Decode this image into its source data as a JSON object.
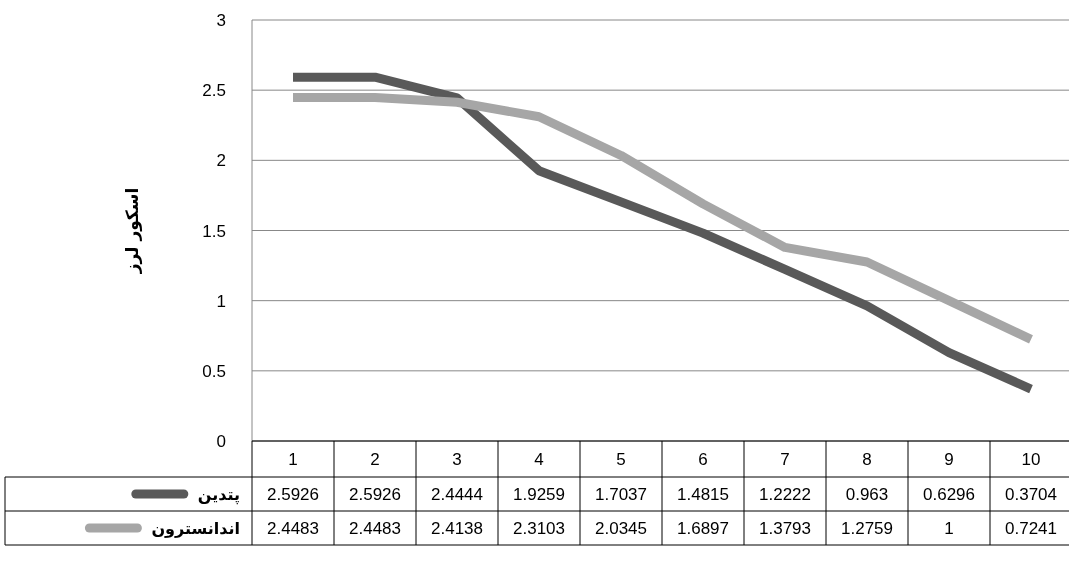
{
  "chart_data": {
    "type": "line",
    "ylabel": "اسکور لرز",
    "categories": [
      "1",
      "2",
      "3",
      "4",
      "5",
      "6",
      "7",
      "8",
      "9",
      "10"
    ],
    "series": [
      {
        "name": "پتدین",
        "color": "#595959",
        "values": [
          2.5926,
          2.5926,
          2.4444,
          1.9259,
          1.7037,
          1.4815,
          1.2222,
          0.963,
          0.6296,
          0.3704
        ]
      },
      {
        "name": "اندانسترون",
        "color": "#a6a6a6",
        "values": [
          2.4483,
          2.4483,
          2.4138,
          2.3103,
          2.0345,
          1.6897,
          1.3793,
          1.2759,
          1,
          0.7241
        ]
      }
    ],
    "ylim": [
      0,
      3
    ],
    "yticks": [
      0,
      0.5,
      1,
      1.5,
      2,
      2.5,
      3
    ],
    "grid": "y",
    "legend": "bottom",
    "data_labels": true
  }
}
